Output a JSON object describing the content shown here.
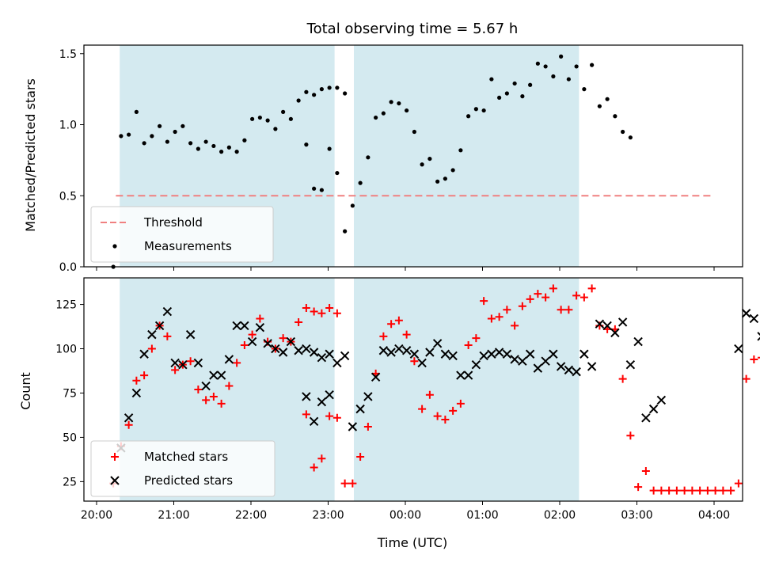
{
  "chart_data": {
    "title": "Total observing time = 5.67 h",
    "xlabel": "Time (UTC)",
    "x_unit": "hours",
    "xlim": [
      19.85,
      4.6
    ],
    "x_ticks": [
      "20:00",
      "21:00",
      "22:00",
      "23:00",
      "00:00",
      "01:00",
      "02:00",
      "03:00",
      "04:00"
    ],
    "shaded_intervals": [
      [
        "20:18",
        "23:05"
      ],
      [
        "23:20",
        "02:15"
      ]
    ],
    "shade_color": "#d4eaf0",
    "panels": [
      {
        "type": "scatter",
        "ylabel": "Matched/Predicted stars",
        "ylim": [
          0,
          1.56
        ],
        "y_ticks": [
          "0.0",
          "0.5",
          "1.0",
          "1.5"
        ],
        "legend_position": "lower-left",
        "threshold": {
          "name": "Threshold",
          "value": 0.5,
          "x_range": [
            "20:15",
            "04:00"
          ],
          "color": "#f08080",
          "style": "dashed"
        },
        "series": [
          {
            "name": "Measurements",
            "color": "#000000",
            "marker": "dot",
            "points": [
              [
                "20:13",
                0.0
              ],
              [
                "20:19",
                0.92
              ],
              [
                "20:25",
                0.93
              ],
              [
                "20:31",
                1.09
              ],
              [
                "20:37",
                0.87
              ],
              [
                "20:43",
                0.92
              ],
              [
                "20:49",
                0.99
              ],
              [
                "20:55",
                0.88
              ],
              [
                "21:01",
                0.95
              ],
              [
                "21:07",
                0.99
              ],
              [
                "21:13",
                0.87
              ],
              [
                "21:19",
                0.83
              ],
              [
                "21:25",
                0.88
              ],
              [
                "21:31",
                0.85
              ],
              [
                "21:37",
                0.81
              ],
              [
                "21:43",
                0.84
              ],
              [
                "21:49",
                0.81
              ],
              [
                "21:55",
                0.89
              ],
              [
                "22:01",
                1.04
              ],
              [
                "22:07",
                1.05
              ],
              [
                "22:13",
                1.03
              ],
              [
                "22:19",
                0.97
              ],
              [
                "22:25",
                1.09
              ],
              [
                "22:31",
                1.04
              ],
              [
                "22:37",
                1.17
              ],
              [
                "22:43",
                1.23
              ],
              [
                "22:49",
                1.21
              ],
              [
                "22:55",
                1.25
              ],
              [
                "23:01",
                1.26
              ],
              [
                "23:07",
                1.26
              ],
              [
                "23:13",
                1.22
              ],
              [
                "22:43",
                0.86
              ],
              [
                "22:49",
                0.55
              ],
              [
                "22:55",
                0.54
              ],
              [
                "23:01",
                0.83
              ],
              [
                "23:07",
                0.66
              ],
              [
                "23:13",
                0.25
              ],
              [
                "23:19",
                0.43
              ],
              [
                "23:25",
                0.59
              ],
              [
                "23:31",
                0.77
              ],
              [
                "23:37",
                1.05
              ],
              [
                "23:43",
                1.08
              ],
              [
                "23:49",
                1.16
              ],
              [
                "23:55",
                1.15
              ],
              [
                "00:01",
                1.1
              ],
              [
                "00:07",
                0.95
              ],
              [
                "00:13",
                0.72
              ],
              [
                "00:19",
                0.76
              ],
              [
                "00:25",
                0.6
              ],
              [
                "00:31",
                0.62
              ],
              [
                "00:37",
                0.68
              ],
              [
                "00:43",
                0.82
              ],
              [
                "00:49",
                1.06
              ],
              [
                "00:55",
                1.11
              ],
              [
                "01:01",
                1.1
              ],
              [
                "01:07",
                1.32
              ],
              [
                "01:13",
                1.19
              ],
              [
                "01:19",
                1.22
              ],
              [
                "01:25",
                1.29
              ],
              [
                "01:31",
                1.2
              ],
              [
                "01:37",
                1.28
              ],
              [
                "01:43",
                1.43
              ],
              [
                "01:49",
                1.41
              ],
              [
                "01:55",
                1.34
              ],
              [
                "02:01",
                1.48
              ],
              [
                "02:07",
                1.32
              ],
              [
                "02:13",
                1.41
              ],
              [
                "02:19",
                1.25
              ],
              [
                "02:25",
                1.42
              ],
              [
                "02:31",
                1.13
              ],
              [
                "02:37",
                1.18
              ],
              [
                "02:43",
                1.06
              ],
              [
                "02:49",
                0.95
              ],
              [
                "02:55",
                0.91
              ]
            ]
          }
        ]
      },
      {
        "type": "scatter",
        "ylabel": "Count",
        "ylim": [
          14,
          140
        ],
        "y_ticks": [
          "25",
          "50",
          "75",
          "100",
          "125"
        ],
        "legend_position": "lower-left",
        "series": [
          {
            "name": "Matched stars",
            "color": "#ff0000",
            "marker": "plus",
            "points": []
          },
          {
            "name": "Predicted stars",
            "color": "#000000",
            "marker": "cross",
            "points": []
          }
        ]
      }
    ]
  }
}
